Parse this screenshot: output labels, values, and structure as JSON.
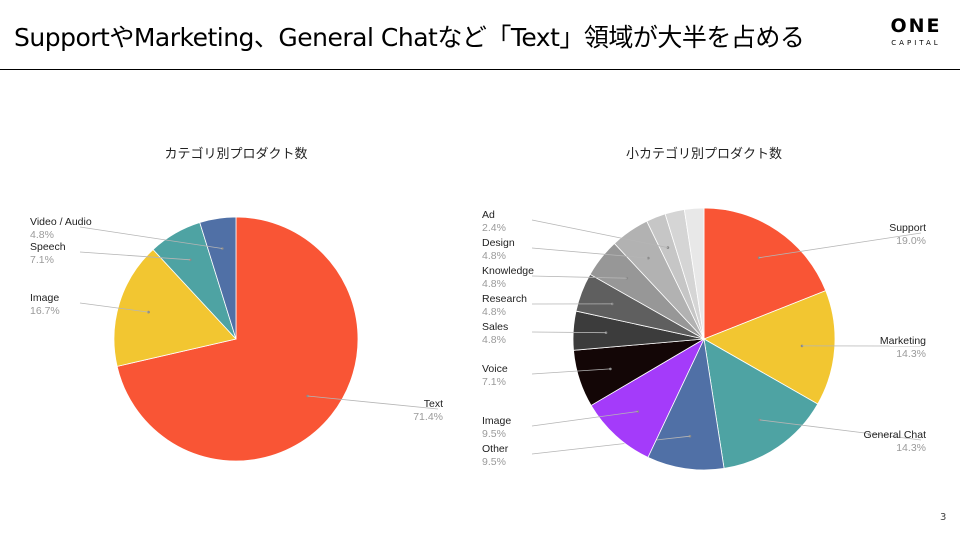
{
  "slide": {
    "title": "SupportやMarketing、General Chatなど「Text」領域が大半を占める",
    "logo_main": "ONE",
    "logo_sub": "CAPITAL",
    "page_number": "3"
  },
  "chart_data": [
    {
      "type": "pie",
      "title": "カテゴリ別プロダクト数",
      "slices": [
        {
          "label": "Text",
          "value": 71.4,
          "pct_label": "71.4%",
          "color": "#F95535"
        },
        {
          "label": "Image",
          "value": 16.7,
          "pct_label": "16.7%",
          "color": "#F2C631"
        },
        {
          "label": "Speech",
          "value": 7.1,
          "pct_label": "7.1%",
          "color": "#4EA3A3"
        },
        {
          "label": "Video / Audio",
          "value": 4.8,
          "pct_label": "4.8%",
          "color": "#5070A6"
        }
      ]
    },
    {
      "type": "pie",
      "title": "小カテゴリ別プロダクト数",
      "slices": [
        {
          "label": "Support",
          "value": 19.0,
          "pct_label": "19.0%",
          "color": "#F95535"
        },
        {
          "label": "Marketing",
          "value": 14.3,
          "pct_label": "14.3%",
          "color": "#F2C631"
        },
        {
          "label": "General Chat",
          "value": 14.3,
          "pct_label": "14.3%",
          "color": "#4EA3A3"
        },
        {
          "label": "Other",
          "value": 9.5,
          "pct_label": "9.5%",
          "color": "#5070A6"
        },
        {
          "label": "Image",
          "value": 9.5,
          "pct_label": "9.5%",
          "color": "#A43BFA"
        },
        {
          "label": "Voice",
          "value": 7.1,
          "pct_label": "7.1%",
          "color": "#130606"
        },
        {
          "label": "Sales",
          "value": 4.8,
          "pct_label": "4.8%",
          "color": "#3C3C3C"
        },
        {
          "label": "Research",
          "value": 4.8,
          "pct_label": "4.8%",
          "color": "#5F5F5F"
        },
        {
          "label": "Knowledge",
          "value": 4.8,
          "pct_label": "4.8%",
          "color": "#979797"
        },
        {
          "label": "Design",
          "value": 4.8,
          "pct_label": "4.8%",
          "color": "#B2B2B2"
        },
        {
          "label": "Ad",
          "value": 2.4,
          "pct_label": "2.4%",
          "color": "#C6C6C6"
        },
        {
          "label": "",
          "value": 2.4,
          "pct_label": "",
          "color": "#D5D5D5"
        },
        {
          "label": "",
          "value": 2.4,
          "pct_label": "",
          "color": "#E8E8E8"
        }
      ]
    }
  ]
}
